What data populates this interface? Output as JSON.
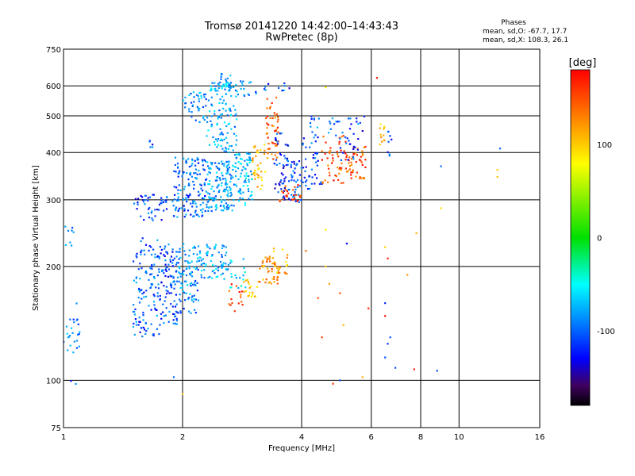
{
  "chart_data": {
    "type": "scatter",
    "title": "Tromsø 20141220 14:42:00–14:43:43",
    "subtitle": "RwPretec (8p)",
    "info_title": "Phases",
    "info_line1": "mean, sd,O: -67.7, 17.7",
    "info_line2": "mean, sd,X: 108.3, 26.1",
    "xlabel": "Frequency [MHz]",
    "ylabel": "Stationary phase Virtual Height [km]",
    "x_scale": "log",
    "y_scale": "log",
    "xlim": [
      1,
      16
    ],
    "ylim": [
      75,
      750
    ],
    "x_ticks": [
      1,
      2,
      4,
      6,
      8,
      10,
      16
    ],
    "y_ticks": [
      75,
      100,
      200,
      300,
      400,
      500,
      600,
      750
    ],
    "x_gridlines": [
      2,
      4,
      6,
      8,
      10
    ],
    "y_gridlines": [
      100,
      200,
      300,
      400,
      500,
      600
    ],
    "grid": true,
    "colorbar": {
      "label": "[deg]",
      "range": [
        -180,
        180
      ],
      "ticks": [
        100,
        0,
        -100
      ]
    },
    "series": [
      {
        "clusters": [
          {
            "f": [
              1.0,
              1.06
            ],
            "h": [
              220,
              260
            ],
            "ph": -80,
            "n": 8
          },
          {
            "f": [
              1.0,
              1.1
            ],
            "h": [
              115,
              160
            ],
            "ph": -80,
            "n": 25
          },
          {
            "f": [
              1.04,
              1.08
            ],
            "h": [
              95,
              100
            ],
            "ph": -90,
            "n": 2
          },
          {
            "f": [
              1.5,
              1.75
            ],
            "h": [
              130,
              240
            ],
            "ph": -95,
            "n": 120
          },
          {
            "f": [
              1.75,
              1.95
            ],
            "h": [
              140,
              230
            ],
            "ph": -100,
            "n": 100
          },
          {
            "f": [
              1.95,
              2.2
            ],
            "h": [
              150,
              230
            ],
            "ph": -80,
            "n": 90
          },
          {
            "f": [
              2.2,
              2.6
            ],
            "h": [
              185,
              230
            ],
            "ph": -70,
            "n": 70
          },
          {
            "f": [
              2.6,
              2.9
            ],
            "h": [
              175,
              210
            ],
            "ph": -55,
            "n": 20
          },
          {
            "f": [
              1.5,
              1.9
            ],
            "h": [
              265,
              310
            ],
            "ph": -105,
            "n": 50
          },
          {
            "f": [
              1.9,
              2.3
            ],
            "h": [
              270,
              390
            ],
            "ph": -90,
            "n": 140
          },
          {
            "f": [
              2.3,
              2.7
            ],
            "h": [
              280,
              380
            ],
            "ph": -75,
            "n": 140
          },
          {
            "f": [
              2.7,
              3.0
            ],
            "h": [
              290,
              400
            ],
            "ph": -65,
            "n": 80
          },
          {
            "f": [
              2.0,
              2.3
            ],
            "h": [
              480,
              580
            ],
            "ph": -80,
            "n": 40
          },
          {
            "f": [
              2.3,
              2.75
            ],
            "h": [
              400,
              620
            ],
            "ph": -70,
            "n": 120
          },
          {
            "f": [
              2.5,
              2.65
            ],
            "h": [
              580,
              650
            ],
            "ph": -65,
            "n": 25
          },
          {
            "f": [
              1.6,
              1.7
            ],
            "h": [
              410,
              430
            ],
            "ph": -100,
            "n": 5
          },
          {
            "f": [
              2.75,
              3.1
            ],
            "h": [
              560,
              620
            ],
            "ph": -90,
            "n": 15
          },
          {
            "f": [
              3.1,
              4.0
            ],
            "h": [
              580,
              615
            ],
            "ph": -100,
            "n": 10
          },
          {
            "f": [
              3.0,
              3.25
            ],
            "h": [
              320,
              420
            ],
            "ph": 105,
            "n": 35
          },
          {
            "f": [
              3.25,
              3.5
            ],
            "h": [
              380,
              560
            ],
            "ph": 140,
            "n": 50
          },
          {
            "f": [
              3.4,
              3.7
            ],
            "h": [
              300,
              450
            ],
            "ph": -110,
            "n": 50
          },
          {
            "f": [
              3.7,
              4.0
            ],
            "h": [
              295,
              380
            ],
            "ph": -100,
            "n": 40
          },
          {
            "f": [
              3.5,
              4.0
            ],
            "h": [
              295,
              330
            ],
            "ph": 160,
            "n": 25
          },
          {
            "f": [
              4.0,
              4.5
            ],
            "h": [
              320,
              440
            ],
            "ph": -100,
            "n": 40
          },
          {
            "f": [
              4.5,
              5.2
            ],
            "h": [
              330,
              450
            ],
            "ph": 150,
            "n": 50
          },
          {
            "f": [
              5.2,
              5.8
            ],
            "h": [
              340,
              420
            ],
            "ph": 145,
            "n": 45
          },
          {
            "f": [
              4.2,
              5.0
            ],
            "h": [
              440,
              500
            ],
            "ph": -90,
            "n": 20
          },
          {
            "f": [
              5.0,
              5.8
            ],
            "h": [
              380,
              500
            ],
            "ph": -100,
            "n": 30
          },
          {
            "f": [
              6.3,
              6.5
            ],
            "h": [
              420,
              480
            ],
            "ph": 100,
            "n": 12
          },
          {
            "f": [
              6.6,
              6.75
            ],
            "h": [
              390,
              470
            ],
            "ph": -95,
            "n": 8
          },
          {
            "f": [
              2.6,
              2.85
            ],
            "h": [
              150,
              180
            ],
            "ph": 160,
            "n": 15
          },
          {
            "f": [
              2.85,
              3.1
            ],
            "h": [
              165,
              185
            ],
            "ph": 100,
            "n": 18
          },
          {
            "f": [
              3.1,
              3.5
            ],
            "h": [
              180,
              215
            ],
            "ph": 125,
            "n": 45
          },
          {
            "f": [
              3.4,
              3.7
            ],
            "h": [
              190,
              225
            ],
            "ph": 110,
            "n": 20
          }
        ],
        "scatter": [
          [
            1.9,
            102,
            -95
          ],
          [
            2.0,
            92,
            100
          ],
          [
            4.8,
            98,
            160
          ],
          [
            5.0,
            100,
            -100
          ],
          [
            5.7,
            102,
            110
          ],
          [
            6.5,
            160,
            -110
          ],
          [
            6.5,
            148,
            175
          ],
          [
            6.9,
            108,
            -100
          ],
          [
            7.7,
            107,
            170
          ],
          [
            8.8,
            106,
            -100
          ],
          [
            7.4,
            190,
            120
          ],
          [
            7.8,
            245,
            110
          ],
          [
            9.0,
            285,
            90
          ],
          [
            9.0,
            368,
            -95
          ],
          [
            12.5,
            360,
            100
          ],
          [
            12.5,
            345,
            105
          ],
          [
            12.7,
            410,
            -95
          ],
          [
            6.2,
            630,
            175
          ],
          [
            4.6,
            595,
            80
          ],
          [
            4.6,
            250,
            90
          ],
          [
            5.0,
            170,
            150
          ],
          [
            5.2,
            230,
            -120
          ],
          [
            4.7,
            180,
            120
          ],
          [
            6.6,
            210,
            170
          ],
          [
            6.5,
            225,
            100
          ],
          [
            4.4,
            165,
            150
          ],
          [
            5.9,
            155,
            170
          ],
          [
            5.1,
            140,
            110
          ],
          [
            6.7,
            130,
            -100
          ],
          [
            6.5,
            115,
            -100
          ],
          [
            6.6,
            125,
            -110
          ],
          [
            4.5,
            130,
            160
          ],
          [
            4.1,
            220,
            140
          ],
          [
            4.6,
            200,
            100
          ]
        ]
      }
    ]
  }
}
